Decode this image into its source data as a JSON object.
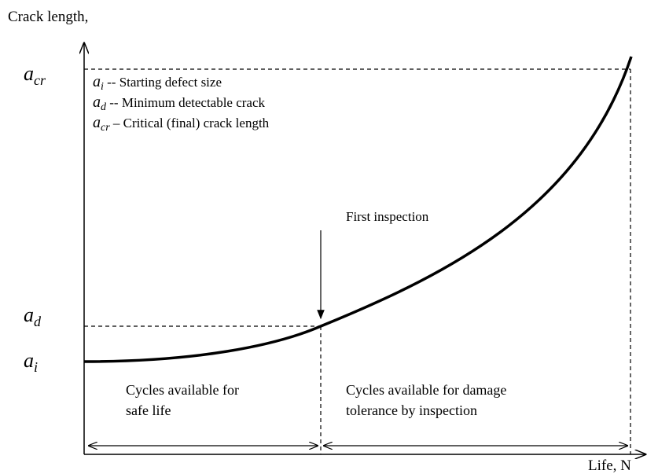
{
  "y_axis_label": "Crack length,",
  "x_axis_label": "Life, N",
  "levels": [
    {
      "symbol": "a",
      "subscript": "cr"
    },
    {
      "symbol": "a",
      "subscript": "d"
    },
    {
      "symbol": "a",
      "subscript": "i"
    }
  ],
  "legend": [
    {
      "symbol": "a",
      "subscript": "i",
      "text": " --  Starting defect size"
    },
    {
      "symbol": "a",
      "subscript": "d",
      "text": " --  Minimum detectable crack"
    },
    {
      "symbol": "a",
      "subscript": "cr",
      "text": " – Critical (final) crack length"
    }
  ],
  "annotation": "First inspection",
  "regions": [
    {
      "lines": [
        "Cycles available for",
        "safe life"
      ]
    },
    {
      "lines": [
        "Cycles available for damage",
        "tolerance by inspection"
      ]
    }
  ]
}
